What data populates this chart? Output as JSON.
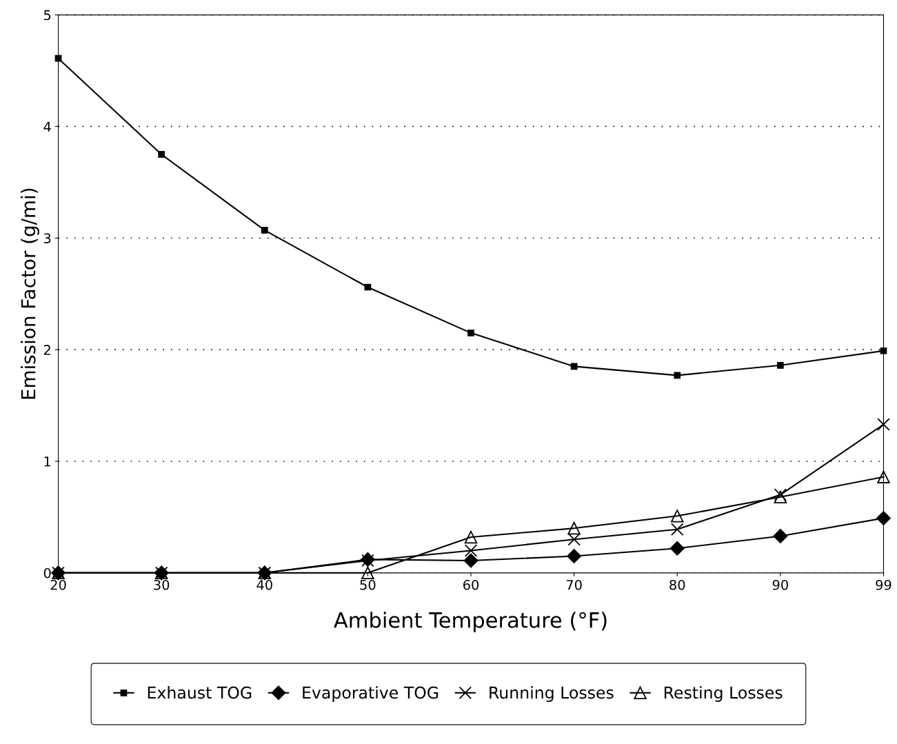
{
  "chart_data": {
    "type": "line",
    "xlabel": "Ambient Temperature (°F)",
    "ylabel": "Emission Factor (g/mi)",
    "categories": [
      "20",
      "30",
      "40",
      "50",
      "60",
      "70",
      "80",
      "90",
      "99"
    ],
    "series": [
      {
        "name": "Exhaust TOG",
        "color": "#000000",
        "marker": "square",
        "values": [
          4.61,
          3.75,
          3.07,
          2.56,
          2.15,
          1.85,
          1.77,
          1.86,
          1.99
        ]
      },
      {
        "name": "Evaporative TOG",
        "color": "#000000",
        "marker": "diamond",
        "values": [
          0,
          0,
          0,
          0.12,
          0.11,
          0.15,
          0.22,
          0.33,
          0.49
        ]
      },
      {
        "name": "Running Losses",
        "color": "#000000",
        "marker": "cross",
        "values": [
          0,
          0,
          0,
          0.11,
          0.2,
          0.3,
          0.39,
          0.7,
          1.33
        ]
      },
      {
        "name": "Resting Losses",
        "color": "#000000",
        "marker": "triangle",
        "values": [
          0,
          0,
          0,
          0,
          0.32,
          0.4,
          0.51,
          0.68,
          0.86
        ]
      }
    ],
    "ylim": [
      0,
      5
    ],
    "yticks": [
      0,
      1,
      2,
      3,
      4,
      5
    ],
    "grid": "y",
    "legend": "bottom",
    "line_style": "solid"
  }
}
